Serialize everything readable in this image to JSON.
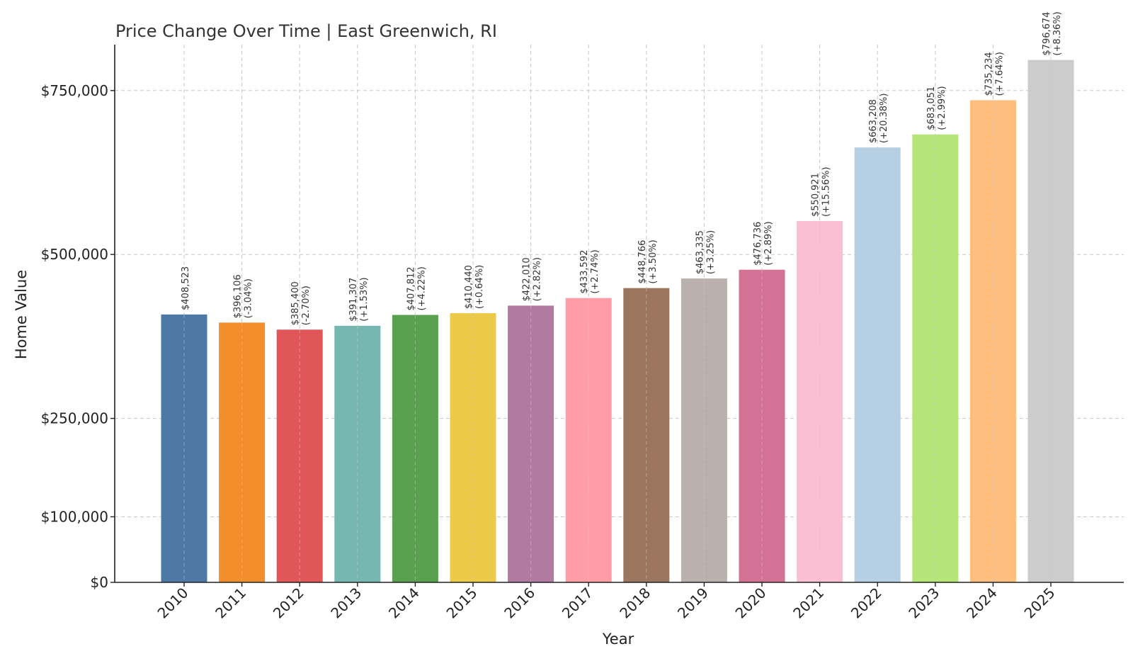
{
  "chart_data": {
    "type": "bar",
    "title": "Price Change Over Time | East Greenwich, RI",
    "xlabel": "Year",
    "ylabel": "Home Value",
    "ylim": [
      0,
      820000
    ],
    "yticks": [
      0,
      100000,
      250000,
      500000,
      750000
    ],
    "ytick_labels": [
      "$0",
      "$100,000",
      "$250,000",
      "$500,000",
      "$750,000"
    ],
    "grid": true,
    "categories": [
      "2010",
      "2011",
      "2012",
      "2013",
      "2014",
      "2015",
      "2016",
      "2017",
      "2018",
      "2019",
      "2020",
      "2021",
      "2022",
      "2023",
      "2024",
      "2025"
    ],
    "values": [
      408523,
      396106,
      385400,
      391307,
      407812,
      410440,
      422010,
      433592,
      448766,
      463335,
      476736,
      550921,
      663208,
      683051,
      735234,
      796674
    ],
    "value_labels": [
      "$408,523",
      "$396,106",
      "$385,400",
      "$391,307",
      "$407,812",
      "$410,440",
      "$422,010",
      "$433,592",
      "$448,766",
      "$463,335",
      "$476,736",
      "$550,921",
      "$663,208",
      "$683,051",
      "$735,234",
      "$796,674"
    ],
    "change_labels": [
      "",
      "(-3.04%)",
      "(-2.70%)",
      "(+1.53%)",
      "(+4.22%)",
      "(+0.64%)",
      "(+2.82%)",
      "(+2.74%)",
      "(+3.50%)",
      "(+3.25%)",
      "(+2.89%)",
      "(+15.56%)",
      "(+20.38%)",
      "(+2.99%)",
      "(+7.64%)",
      "(+8.36%)"
    ],
    "colors": [
      "#4e79a7",
      "#f28e2b",
      "#e15759",
      "#76b7b2",
      "#59a14f",
      "#edc948",
      "#b07aa1",
      "#ff9da7",
      "#9c755f",
      "#bab0ac",
      "#d37295",
      "#fabfd2",
      "#b6cfe3",
      "#b5e479",
      "#ffbe7d",
      "#cccccc"
    ]
  }
}
